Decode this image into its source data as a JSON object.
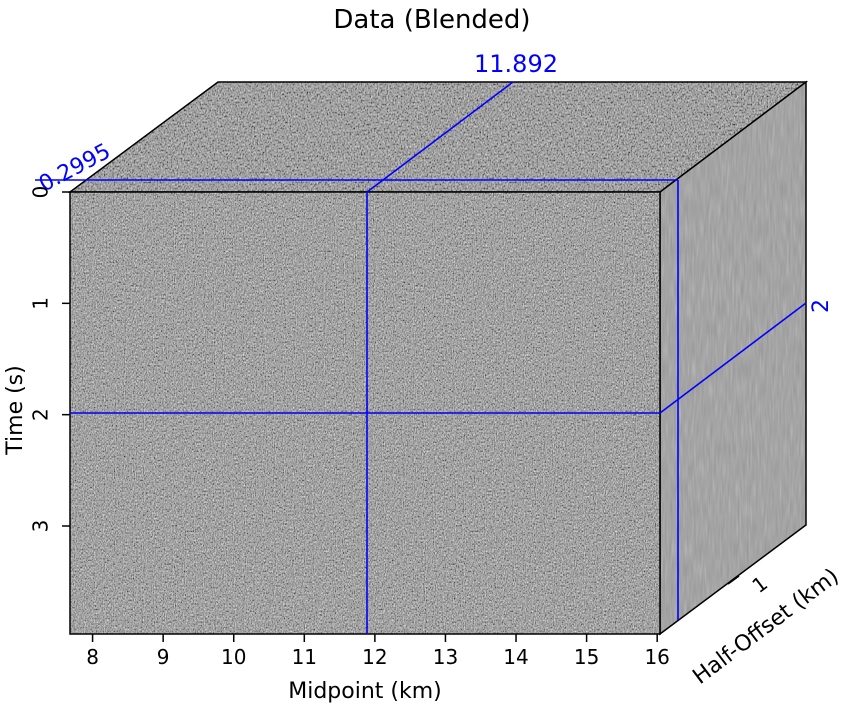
{
  "chart_data": {
    "type": "heatmap",
    "title": "Data (Blended)",
    "xlabel": "Midpoint (km)",
    "ylabel": "Time (s)",
    "zlabel": "Half-Offset (km)",
    "x_ticks": [
      "8",
      "9",
      "10",
      "11",
      "12",
      "13",
      "14",
      "15",
      "16"
    ],
    "y_ticks": [
      "0",
      "1",
      "2",
      "3"
    ],
    "z_ticks": [
      "1"
    ],
    "xlim": [
      7.68,
      16.04
    ],
    "ylim": [
      0,
      3.97
    ],
    "slice_labels": {
      "midpoint": "11.892",
      "time": "0.2995",
      "offset": "2"
    },
    "slices": {
      "midpoint_km": 11.892,
      "time_s": 0.2995,
      "offset_km": 2
    },
    "colors": {
      "slice_lines": "#0000ff",
      "colormap": "grayscale"
    }
  }
}
